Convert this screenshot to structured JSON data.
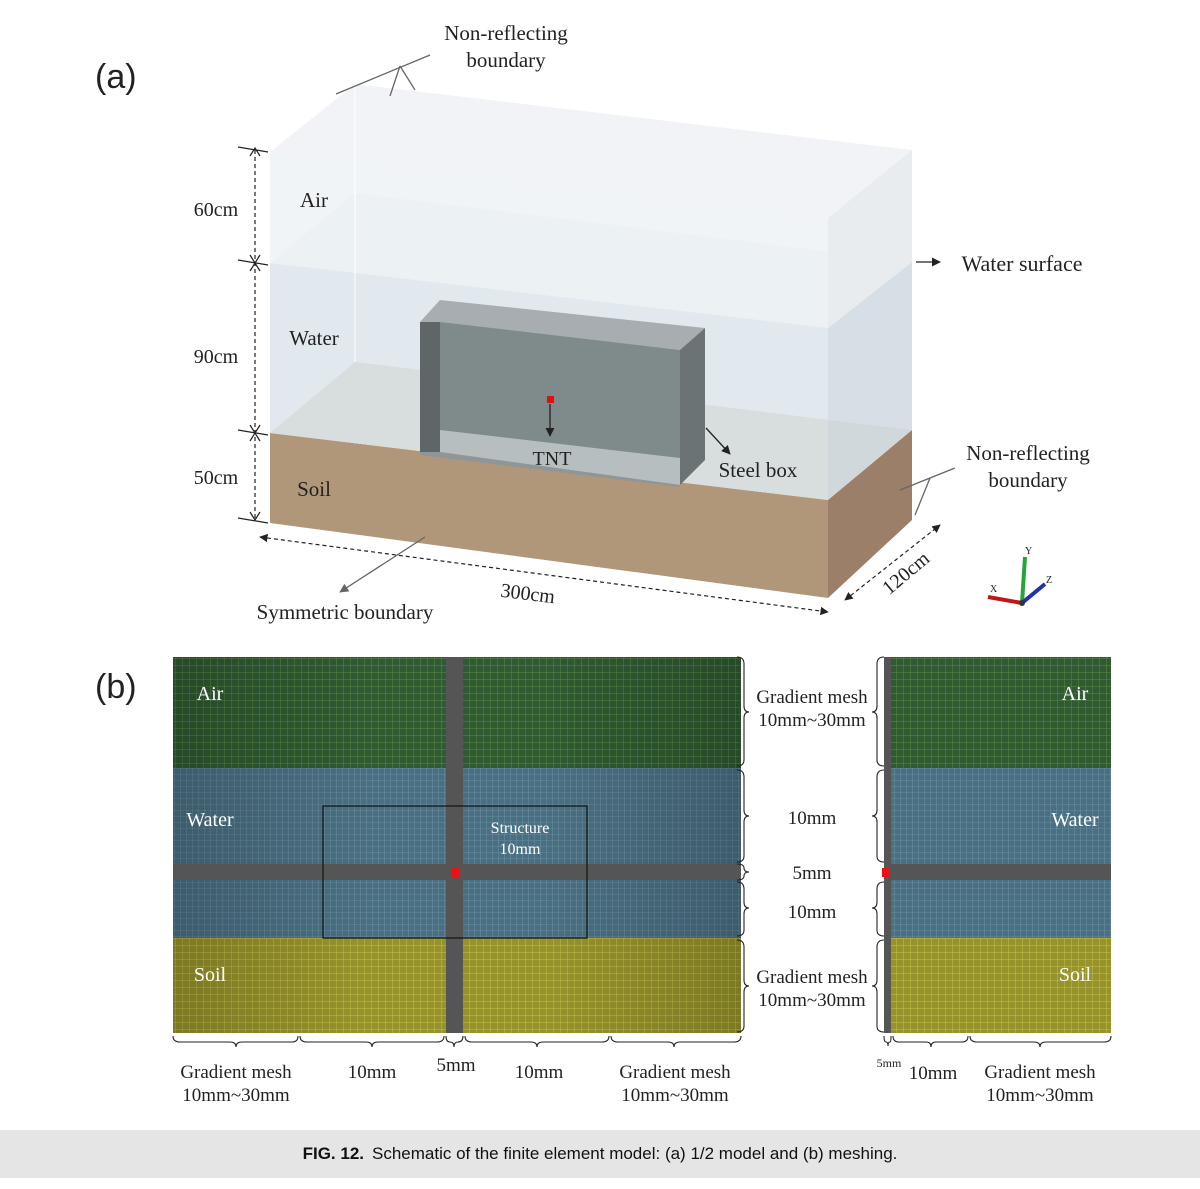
{
  "figure": {
    "caption_label": "FIG. 12.",
    "caption_text": "Schematic of the finite element model: (a) 1/2 model and (b) meshing."
  },
  "panel_a": {
    "label": "(a)",
    "nonreflecting_top": [
      "Non-reflecting",
      "boundary"
    ],
    "nonreflecting_right": [
      "Non-reflecting",
      "boundary"
    ],
    "water_surface": "Water surface",
    "symmetric_boundary": "Symmetric boundary",
    "steel_box": "Steel box",
    "tnt": "TNT",
    "layers": {
      "air": "Air",
      "water": "Water",
      "soil": "Soil"
    },
    "dimensions": {
      "air_height": "60cm",
      "water_height": "90cm",
      "soil_height": "50cm",
      "length": "300cm",
      "depth": "120cm"
    },
    "axes": {
      "x": "X",
      "y": "Y",
      "z": "Z"
    },
    "colors": {
      "air": "#eef2f6",
      "water": "#d3e2ea",
      "soil": "#b09678",
      "steel": "#7f8a8a",
      "tnt": "#e01010"
    }
  },
  "panel_b": {
    "label": "(b)",
    "regions": {
      "air": "Air",
      "water": "Water",
      "soil": "Soil"
    },
    "structure": [
      "Structure",
      "10mm"
    ],
    "right_labels": {
      "gradient_top": [
        "Gradient mesh",
        "10mm~30mm"
      ],
      "water_upper": "10mm",
      "center_band": "5mm",
      "water_lower": "10mm",
      "gradient_bottom": [
        "Gradient mesh",
        "10mm~30mm"
      ]
    },
    "bottom_labels": {
      "left_gradient": [
        "Gradient mesh",
        "10mm~30mm"
      ],
      "left_fine": "10mm",
      "center": "5mm",
      "right_fine": "10mm",
      "right_gradient": [
        "Gradient mesh",
        "10mm~30mm"
      ]
    },
    "side_bottom_labels": {
      "band": "5mm",
      "fine": "10mm",
      "gradient": [
        "Gradient mesh",
        "10mm~30mm"
      ]
    },
    "colors": {
      "air": "#2d5a30",
      "water": "#4d7388",
      "soil": "#a6a233",
      "band": "#555555",
      "charge": "#ee1111"
    }
  }
}
